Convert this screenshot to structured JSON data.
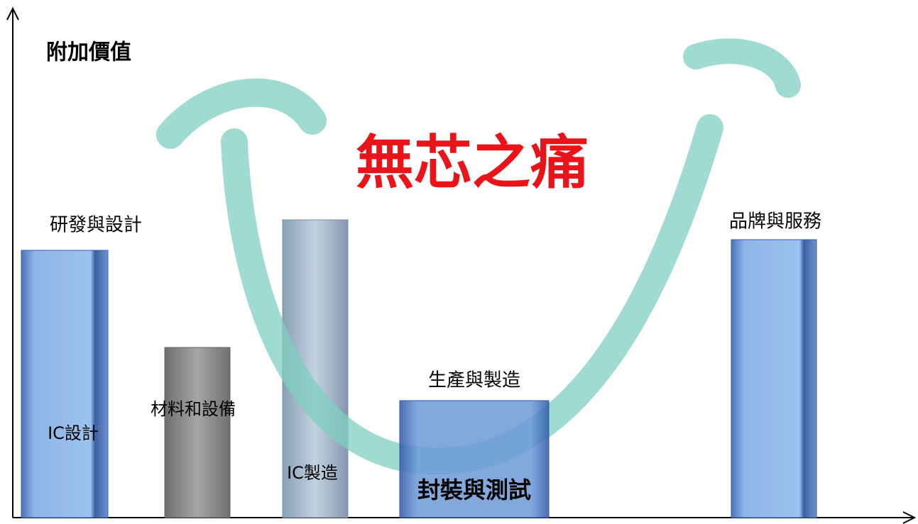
{
  "y_axis_label": "附加價值",
  "title": "無芯之痛",
  "stages": [
    "研發與設計",
    "生產與製造",
    "品牌與服務"
  ],
  "bars": [
    "IC設計",
    "材料和設備",
    "IC製造",
    "封裝與測試"
  ]
}
